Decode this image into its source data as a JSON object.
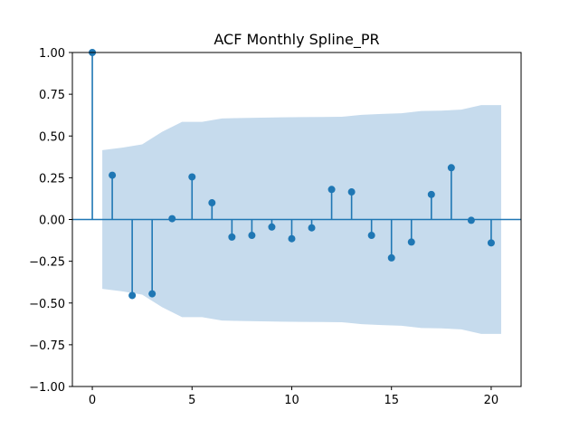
{
  "chart_data": {
    "type": "stem",
    "title": "ACF Monthly Spline_PR",
    "xlabel": "",
    "ylabel": "",
    "xlim": [
      -1,
      21.5
    ],
    "ylim": [
      -1.0,
      1.0
    ],
    "xticks": [
      0,
      5,
      10,
      15,
      20
    ],
    "xtick_labels": [
      "0",
      "5",
      "10",
      "15",
      "20"
    ],
    "yticks": [
      -1.0,
      -0.75,
      -0.5,
      -0.25,
      0.0,
      0.25,
      0.5,
      0.75,
      1.0
    ],
    "ytick_labels": [
      "−1.00",
      "−0.75",
      "−0.50",
      "−0.25",
      "0.00",
      "0.25",
      "0.50",
      "0.75",
      "1.00"
    ],
    "grid": false,
    "series": [
      {
        "lags": [
          0,
          1,
          2,
          3,
          4,
          5,
          6,
          7,
          8,
          9,
          10,
          11,
          12,
          13,
          14,
          15,
          16,
          17,
          18,
          19,
          20
        ],
        "values": [
          1.0,
          0.265,
          -0.455,
          -0.445,
          0.005,
          0.255,
          0.1,
          -0.105,
          -0.095,
          -0.045,
          -0.115,
          -0.05,
          0.18,
          0.165,
          -0.095,
          -0.23,
          -0.135,
          0.15,
          0.31,
          -0.005,
          -0.14
        ]
      }
    ],
    "confidence_band": {
      "x": [
        0.5,
        1.5,
        2.5,
        3.5,
        4.5,
        5.5,
        6.5,
        7.5,
        8.5,
        9.5,
        10.5,
        11.5,
        12.5,
        13.5,
        14.5,
        15.5,
        16.5,
        17.5,
        18.5,
        19.5,
        20.5
      ],
      "upper": [
        0.415,
        0.43,
        0.45,
        0.525,
        0.585,
        0.585,
        0.605,
        0.608,
        0.61,
        0.612,
        0.613,
        0.614,
        0.615,
        0.627,
        0.632,
        0.636,
        0.65,
        0.652,
        0.658,
        0.685,
        0.685
      ],
      "lower": [
        -0.415,
        -0.43,
        -0.45,
        -0.525,
        -0.585,
        -0.585,
        -0.605,
        -0.608,
        -0.61,
        -0.612,
        -0.613,
        -0.614,
        -0.615,
        -0.627,
        -0.632,
        -0.636,
        -0.65,
        -0.652,
        -0.658,
        -0.685,
        -0.685
      ]
    },
    "colors": {
      "stem": "#1f77b4",
      "band": "#c6dbed",
      "axes": "#000000"
    }
  }
}
